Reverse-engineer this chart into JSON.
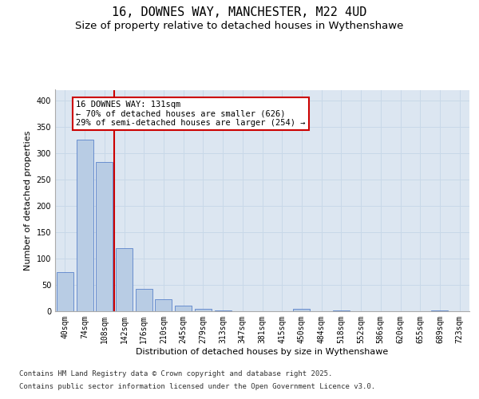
{
  "title_line1": "16, DOWNES WAY, MANCHESTER, M22 4UD",
  "title_line2": "Size of property relative to detached houses in Wythenshawe",
  "xlabel": "Distribution of detached houses by size in Wythenshawe",
  "ylabel": "Number of detached properties",
  "categories": [
    "40sqm",
    "74sqm",
    "108sqm",
    "142sqm",
    "176sqm",
    "210sqm",
    "245sqm",
    "279sqm",
    "313sqm",
    "347sqm",
    "381sqm",
    "415sqm",
    "450sqm",
    "484sqm",
    "518sqm",
    "552sqm",
    "586sqm",
    "620sqm",
    "655sqm",
    "689sqm",
    "723sqm"
  ],
  "values": [
    74,
    326,
    283,
    120,
    43,
    23,
    11,
    4,
    1,
    0,
    0,
    0,
    5,
    0,
    2,
    0,
    0,
    0,
    0,
    2,
    0
  ],
  "bar_color": "#b8cce4",
  "bar_edge_color": "#4472c4",
  "grid_color": "#c8d8e8",
  "background_color": "#dce6f1",
  "vline_x": 2.5,
  "vline_color": "#cc0000",
  "annotation_text": "16 DOWNES WAY: 131sqm\n← 70% of detached houses are smaller (626)\n29% of semi-detached houses are larger (254) →",
  "annotation_box_color": "#cc0000",
  "ylim": [
    0,
    420
  ],
  "yticks": [
    0,
    50,
    100,
    150,
    200,
    250,
    300,
    350,
    400
  ],
  "footer_line1": "Contains HM Land Registry data © Crown copyright and database right 2025.",
  "footer_line2": "Contains public sector information licensed under the Open Government Licence v3.0.",
  "title_fontsize": 11,
  "subtitle_fontsize": 9.5,
  "axis_label_fontsize": 8,
  "tick_fontsize": 7,
  "annotation_fontsize": 7.5,
  "footer_fontsize": 6.5
}
